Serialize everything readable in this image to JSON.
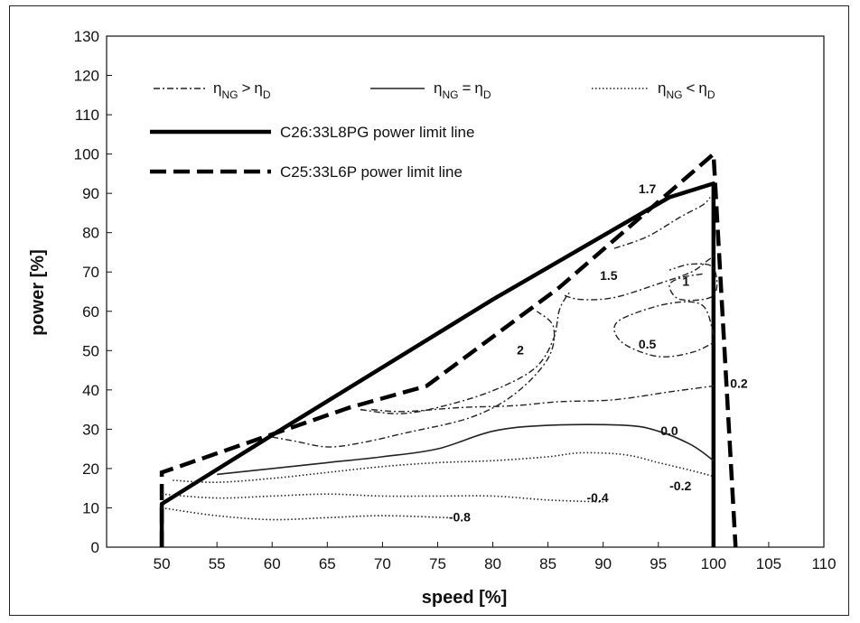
{
  "chart_data": {
    "type": "line",
    "xlabel": "speed [%]",
    "ylabel": "power [%]",
    "xlim": [
      45,
      110
    ],
    "ylim": [
      0,
      130
    ],
    "x_ticks": [
      "50",
      "55",
      "60",
      "65",
      "70",
      "75",
      "80",
      "85",
      "90",
      "95",
      "100",
      "105",
      "110"
    ],
    "y_ticks": [
      "0",
      "10",
      "20",
      "30",
      "40",
      "50",
      "60",
      "70",
      "80",
      "90",
      "100",
      "110",
      "120",
      "130"
    ],
    "legend": {
      "placement": "top",
      "items": [
        {
          "label": "η",
          "sub": "NG",
          "op": ">",
          "label2": "η",
          "sub2": "D",
          "style": "dashdot"
        },
        {
          "label": "η",
          "sub": "NG",
          "op": "=",
          "label2": "η",
          "sub2": "D",
          "style": "solid"
        },
        {
          "label": "η",
          "sub": "NG",
          "op": "<",
          "label2": "η",
          "sub2": "D",
          "style": "dotted"
        }
      ],
      "limit_items": [
        {
          "label": "C26:33L8PG power limit line",
          "style": "thick-solid"
        },
        {
          "label": "C25:33L6P power limit line",
          "style": "thick-dashed"
        }
      ]
    },
    "series": [
      {
        "name": "C26:33L8PG power limit line",
        "style": "thick-solid",
        "points": [
          [
            50,
            0
          ],
          [
            50,
            11
          ],
          [
            60,
            28.5
          ],
          [
            80,
            63
          ],
          [
            96,
            89
          ],
          [
            100,
            92.5
          ],
          [
            100,
            0
          ]
        ]
      },
      {
        "name": "C25:33L6P power limit line",
        "style": "thick-dashed",
        "points": [
          [
            50,
            0
          ],
          [
            50,
            19
          ],
          [
            67,
            35.5
          ],
          [
            74,
            41
          ],
          [
            86,
            66
          ],
          [
            100,
            100
          ],
          [
            102,
            0
          ]
        ]
      },
      {
        "label": "2",
        "style": "dashdot",
        "points": [
          [
            60,
            28
          ],
          [
            62,
            27
          ],
          [
            65,
            25.5
          ],
          [
            68,
            26.5
          ],
          [
            72,
            29
          ],
          [
            78,
            33
          ],
          [
            82,
            39
          ],
          [
            85,
            48
          ],
          [
            85.5,
            56
          ],
          [
            84,
            60
          ]
        ]
      },
      {
        "label": "2",
        "style": "dashdot",
        "points": [
          [
            68,
            35
          ],
          [
            72,
            34
          ],
          [
            77,
            37
          ],
          [
            81,
            41
          ],
          [
            84,
            46
          ],
          [
            85.5,
            53
          ],
          [
            86,
            60
          ],
          [
            86.5,
            63
          ],
          [
            87,
            65
          ]
        ]
      },
      {
        "label": "1.5",
        "style": "dashdot",
        "points": [
          [
            86.5,
            64
          ],
          [
            88,
            63
          ],
          [
            91,
            63.5
          ],
          [
            95,
            67
          ],
          [
            98,
            70
          ],
          [
            99.5,
            73
          ],
          [
            100,
            74
          ]
        ]
      },
      {
        "label": "1.7",
        "style": "dashdot",
        "points": [
          [
            91,
            76
          ],
          [
            94,
            79
          ],
          [
            97,
            84
          ],
          [
            99,
            87
          ],
          [
            99.7,
            89
          ]
        ]
      },
      {
        "label": "1",
        "style": "dashdot",
        "points": [
          [
            99,
            69.5
          ],
          [
            97,
            68.5
          ],
          [
            96,
            66.5
          ],
          [
            97,
            63
          ],
          [
            100,
            64
          ],
          [
            100,
            71
          ],
          [
            98,
            72
          ],
          [
            96,
            70.5
          ]
        ]
      },
      {
        "label": "0.5",
        "style": "dashdot",
        "points": [
          [
            100,
            54
          ],
          [
            99,
            61.5
          ],
          [
            96,
            62
          ],
          [
            92,
            58.5
          ],
          [
            91,
            55.5
          ],
          [
            92,
            51.5
          ],
          [
            95,
            48.5
          ],
          [
            98,
            49.5
          ],
          [
            100,
            52
          ]
        ]
      },
      {
        "label": "0.2",
        "style": "dashdot",
        "points": [
          [
            69,
            35
          ],
          [
            72,
            34.5
          ],
          [
            77,
            35.5
          ],
          [
            82,
            36
          ],
          [
            86,
            37
          ],
          [
            91,
            37.5
          ],
          [
            96,
            39.5
          ],
          [
            100,
            41
          ]
        ]
      },
      {
        "label": "0.0",
        "style": "solid",
        "points": [
          [
            55,
            18.5
          ],
          [
            60,
            20
          ],
          [
            65,
            21.5
          ],
          [
            70,
            23
          ],
          [
            75,
            25
          ],
          [
            80,
            29.5
          ],
          [
            85,
            31
          ],
          [
            92,
            31
          ],
          [
            95,
            29.5
          ],
          [
            98,
            26
          ],
          [
            100,
            22
          ]
        ]
      },
      {
        "label": "-0.2",
        "style": "dotted",
        "points": [
          [
            51,
            17
          ],
          [
            55,
            16.5
          ],
          [
            60,
            17.5
          ],
          [
            65,
            19
          ],
          [
            70,
            20.5
          ],
          [
            75,
            21.5
          ],
          [
            80,
            22
          ],
          [
            85,
            23
          ],
          [
            88,
            24
          ],
          [
            92,
            23.5
          ],
          [
            95,
            21.5
          ],
          [
            98,
            19.5
          ],
          [
            100,
            18
          ]
        ]
      },
      {
        "label": "-0.4",
        "style": "dotted",
        "points": [
          [
            50,
            13.5
          ],
          [
            55,
            12.5
          ],
          [
            60,
            13
          ],
          [
            65,
            13.5
          ],
          [
            70,
            13
          ],
          [
            75,
            13
          ],
          [
            80,
            13
          ],
          [
            85,
            12
          ],
          [
            90,
            11.5
          ]
        ]
      },
      {
        "label": "-0.8",
        "style": "dotted",
        "points": [
          [
            50,
            10
          ],
          [
            55,
            8
          ],
          [
            60,
            7
          ],
          [
            65,
            7.5
          ],
          [
            70,
            8
          ],
          [
            76,
            7.5
          ]
        ]
      }
    ],
    "annotations": [
      {
        "text": "1.7",
        "x": 94,
        "y": 90
      },
      {
        "text": "1.5",
        "x": 90.5,
        "y": 68
      },
      {
        "text": "1",
        "x": 97.5,
        "y": 66.5
      },
      {
        "text": "0.5",
        "x": 94,
        "y": 50.5
      },
      {
        "text": "2",
        "x": 82.5,
        "y": 49
      },
      {
        "text": "0.2",
        "x": 102.3,
        "y": 40.5
      },
      {
        "text": "0.0",
        "x": 96,
        "y": 28.5
      },
      {
        "text": "-0.2",
        "x": 97,
        "y": 14.5
      },
      {
        "text": "-0.4",
        "x": 89.5,
        "y": 11.5
      },
      {
        "text": "-0.8",
        "x": 77,
        "y": 6.5
      }
    ]
  }
}
